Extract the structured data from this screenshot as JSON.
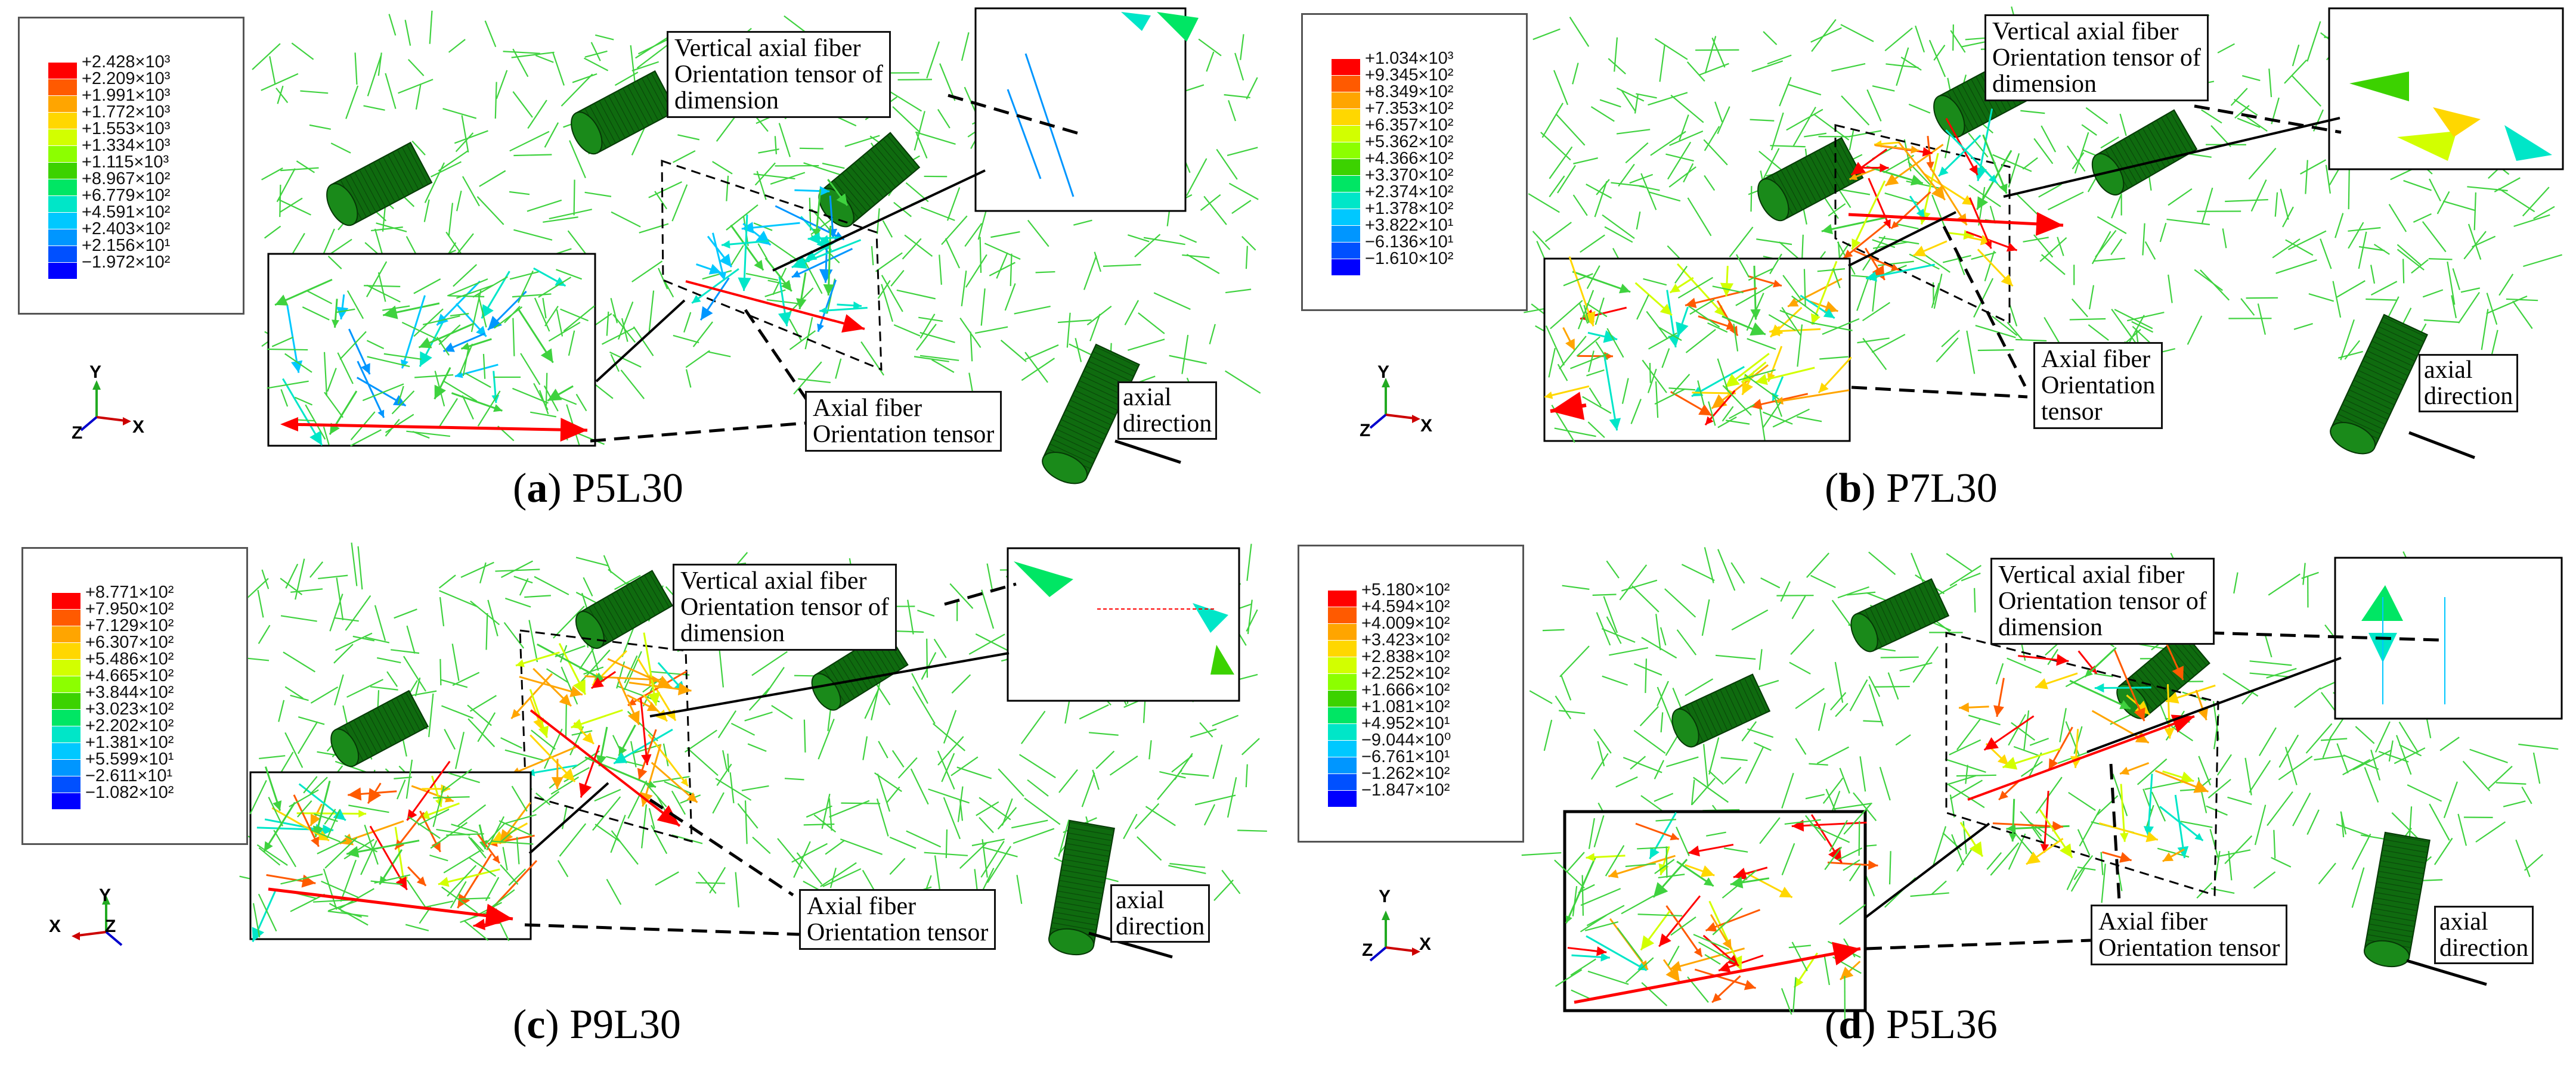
{
  "panels": [
    {
      "id": "a",
      "caption_letter": "a",
      "caption_name": "P5L30",
      "legend": [
        "+2.428×10³",
        "+2.209×10³",
        "+1.991×10³",
        "+1.772×10³",
        "+1.553×10³",
        "+1.334×10³",
        "+1.115×10³",
        "+8.967×10²",
        "+6.779×10²",
        "+4.591×10²",
        "+2.403×10²",
        "+2.156×10¹",
        "−1.972×10²"
      ],
      "triad": [
        "Y",
        "Z",
        "X"
      ],
      "vertical_label": [
        "Vertical axial fiber",
        "Orientation tensor of",
        "dimension"
      ],
      "axial_label": [
        "Axial fiber",
        "Orientation tensor"
      ],
      "direction_label": [
        "axial",
        "direction"
      ]
    },
    {
      "id": "b",
      "caption_letter": "b",
      "caption_name": "P7L30",
      "legend": [
        "+1.034×10³",
        "+9.345×10²",
        "+8.349×10²",
        "+7.353×10²",
        "+6.357×10²",
        "+5.362×10²",
        "+4.366×10²",
        "+3.370×10²",
        "+2.374×10²",
        "+1.378×10²",
        "+3.822×10¹",
        "−6.136×10¹",
        "−1.610×10²"
      ],
      "triad": [
        "Y",
        "Z",
        "X"
      ],
      "vertical_label": [
        "Vertical axial fiber",
        "Orientation tensor of",
        "dimension"
      ],
      "axial_label": [
        "Axial fiber",
        "Orientation",
        "tensor"
      ],
      "direction_label": [
        "axial",
        "direction"
      ]
    },
    {
      "id": "c",
      "caption_letter": "c",
      "caption_name": "P9L30",
      "legend": [
        "+8.771×10²",
        "+7.950×10²",
        "+7.129×10²",
        "+6.307×10²",
        "+5.486×10²",
        "+4.665×10²",
        "+3.844×10²",
        "+3.023×10²",
        "+2.202×10²",
        "+1.381×10²",
        "+5.599×10¹",
        "−2.611×10¹",
        "−1.082×10²"
      ],
      "triad": [
        "Y",
        "X",
        "Z"
      ],
      "vertical_label": [
        "Vertical axial fiber",
        "Orientation tensor of",
        "dimension"
      ],
      "axial_label": [
        "Axial fiber",
        "Orientation tensor"
      ],
      "direction_label": [
        "axial",
        "direction"
      ]
    },
    {
      "id": "d",
      "caption_letter": "d",
      "caption_name": "P5L36",
      "legend": [
        "+5.180×10²",
        "+4.594×10²",
        "+4.009×10²",
        "+3.423×10²",
        "+2.838×10²",
        "+2.252×10²",
        "+1.666×10²",
        "+1.081×10²",
        "+4.952×10¹",
        "−9.044×10⁰",
        "−6.761×10¹",
        "−1.262×10²",
        "−1.847×10²"
      ],
      "triad": [
        "Y",
        "Z",
        "X"
      ],
      "vertical_label": [
        "Vertical axial fiber",
        "Orientation tensor of",
        "dimension"
      ],
      "axial_label": [
        "Axial fiber",
        "Orientation tensor"
      ],
      "direction_label": [
        "axial",
        "direction"
      ]
    }
  ],
  "legend_colors": [
    "#ff0000",
    "#ff5a00",
    "#ffa500",
    "#ffd700",
    "#d2ff00",
    "#8cff00",
    "#3cd200",
    "#00e664",
    "#00e6c8",
    "#00c8ff",
    "#0096ff",
    "#0050ff",
    "#0000ff"
  ],
  "fiber_color": "#3fd23f",
  "cylinder_color": "#0f6b0f"
}
